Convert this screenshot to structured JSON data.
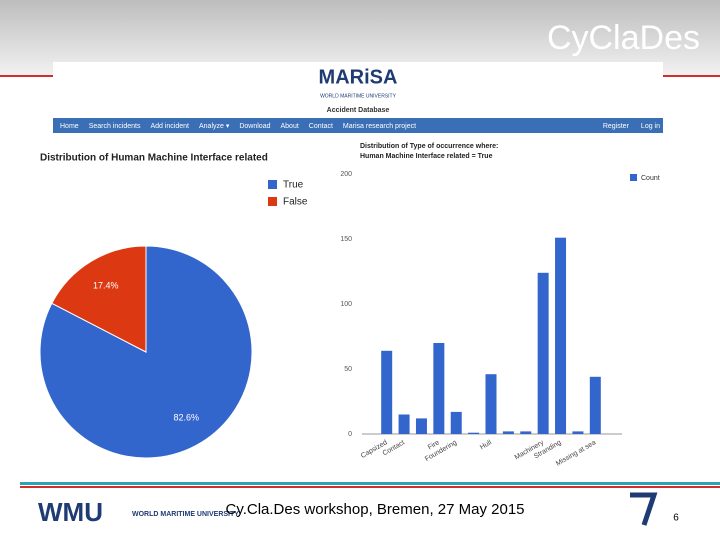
{
  "header": {
    "logo": "CyClaDes"
  },
  "site": {
    "logo": "MARiSA",
    "university": "WORLD MARITIME UNIVERSITY",
    "subtitle": "Accident Database",
    "nav": [
      "Home",
      "Search incidents",
      "Add incident",
      "Analyze ▾",
      "Download",
      "About",
      "Contact",
      "Marisa research project"
    ],
    "nav_right": [
      "Register",
      "Log in"
    ]
  },
  "chart_data": [
    {
      "type": "pie",
      "title": "Distribution of Human Machine Interface related",
      "categories": [
        "True",
        "False"
      ],
      "values": [
        82.6,
        17.4
      ],
      "value_labels": [
        "82.6%",
        "17.4%"
      ],
      "colors": [
        "#3366cc",
        "#dc3912"
      ],
      "legend": "right"
    },
    {
      "type": "bar",
      "title": "Distribution of Type of occurrence where:",
      "subtitle": "Human Machine Interface related = True",
      "categories": [
        "Capsized",
        "Contact",
        null,
        "Fire",
        "Foundering",
        null,
        "Hull",
        null,
        null,
        "Machinery",
        "Stranding",
        null,
        "Missing at sea"
      ],
      "series": [
        {
          "name": "Count",
          "color": "#3366cc",
          "values": [
            64,
            15,
            12,
            70,
            17,
            1,
            46,
            2,
            2,
            124,
            151,
            2,
            44
          ]
        }
      ],
      "ylim": [
        0,
        200
      ],
      "yticks": [
        0,
        50,
        100,
        150,
        200
      ],
      "grid": true,
      "legend": "right"
    }
  ],
  "footer": {
    "logo": "WMU",
    "logo_text": "WORLD MARITIME UNIVERSITY",
    "text": "Cy.Cla.Des workshop, Bremen, 27 May 2015",
    "page": "6"
  }
}
